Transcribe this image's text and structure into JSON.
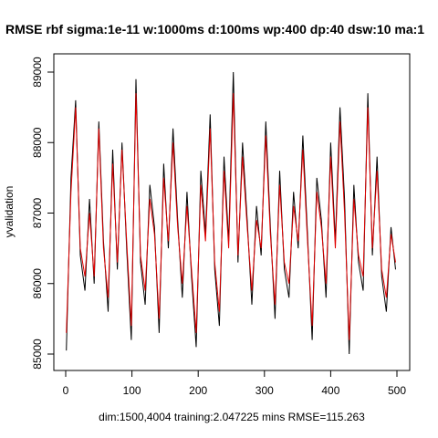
{
  "chart_data": {
    "type": "line",
    "title": "RMSE  rbf sigma:1e-11 w:1000ms d:100ms wp:400 dp:40 dsw:10 ma:1",
    "xlabel": "dim:1500,4004 training:2.047225 mins RMSE=115.263",
    "ylabel": "yvalidation",
    "xlim": [
      0,
      500
    ],
    "ylim": [
      85000,
      89000
    ],
    "x_ticks": [
      "0",
      "100",
      "200",
      "300",
      "400",
      "500"
    ],
    "y_ticks": [
      "85000",
      "86000",
      "87000",
      "88000",
      "89000"
    ],
    "grid": false,
    "series": [
      {
        "color": "#000000",
        "x": [
          1,
          8,
          15,
          22,
          29,
          36,
          43,
          50,
          57,
          64,
          71,
          78,
          85,
          92,
          99,
          106,
          113,
          120,
          127,
          134,
          141,
          148,
          155,
          162,
          169,
          176,
          183,
          190,
          197,
          204,
          211,
          218,
          225,
          232,
          239,
          246,
          253,
          260,
          267,
          274,
          281,
          288,
          295,
          302,
          309,
          316,
          323,
          330,
          337,
          344,
          351,
          358,
          365,
          372,
          379,
          386,
          393,
          400,
          407,
          414,
          421,
          428,
          435,
          442,
          449,
          456,
          463,
          470,
          477,
          484,
          491,
          498
        ],
        "values": [
          85050,
          87500,
          88600,
          86400,
          85900,
          87200,
          86000,
          88300,
          86600,
          85600,
          87900,
          86200,
          88000,
          86500,
          85200,
          88900,
          86300,
          85700,
          87400,
          86800,
          85300,
          87700,
          86500,
          88200,
          86900,
          85800,
          87300,
          86100,
          85100,
          87600,
          86700,
          88400,
          86200,
          85400,
          87800,
          86600,
          89000,
          86300,
          88000,
          86900,
          85700,
          87100,
          86400,
          88300,
          86800,
          85500,
          87600,
          86200,
          85800,
          87300,
          86500,
          88100,
          86700,
          85200,
          87500,
          86900,
          85800,
          88000,
          86600,
          88500,
          87200,
          85000,
          87400,
          86300,
          85900,
          88700,
          86400,
          87800,
          86100,
          85600,
          86800,
          86200
        ]
      },
      {
        "color": "#e00000",
        "x": [
          1,
          8,
          15,
          22,
          29,
          36,
          43,
          50,
          57,
          64,
          71,
          78,
          85,
          92,
          99,
          106,
          113,
          120,
          127,
          134,
          141,
          148,
          155,
          162,
          169,
          176,
          183,
          190,
          197,
          204,
          211,
          218,
          225,
          232,
          239,
          246,
          253,
          260,
          267,
          274,
          281,
          288,
          295,
          302,
          309,
          316,
          323,
          330,
          337,
          344,
          351,
          358,
          365,
          372,
          379,
          386,
          393,
          400,
          407,
          414,
          421,
          428,
          435,
          442,
          449,
          456,
          463,
          470,
          477,
          484,
          491,
          498
        ],
        "values": [
          85300,
          87300,
          88500,
          86500,
          86100,
          87000,
          86100,
          88200,
          86500,
          85800,
          87700,
          86300,
          87900,
          86600,
          85400,
          88700,
          86400,
          85900,
          87200,
          86700,
          85500,
          87500,
          86600,
          88000,
          86800,
          86000,
          87100,
          86200,
          85300,
          87400,
          86600,
          88200,
          86300,
          85600,
          87600,
          86500,
          88700,
          86400,
          87800,
          86800,
          85900,
          86900,
          86500,
          88100,
          86700,
          85700,
          87400,
          86300,
          86000,
          87100,
          86600,
          87900,
          86600,
          85400,
          87300,
          86800,
          86000,
          87800,
          86500,
          88300,
          87000,
          85200,
          87200,
          86400,
          86100,
          88500,
          86500,
          87600,
          86200,
          85800,
          86700,
          86300
        ]
      }
    ]
  }
}
